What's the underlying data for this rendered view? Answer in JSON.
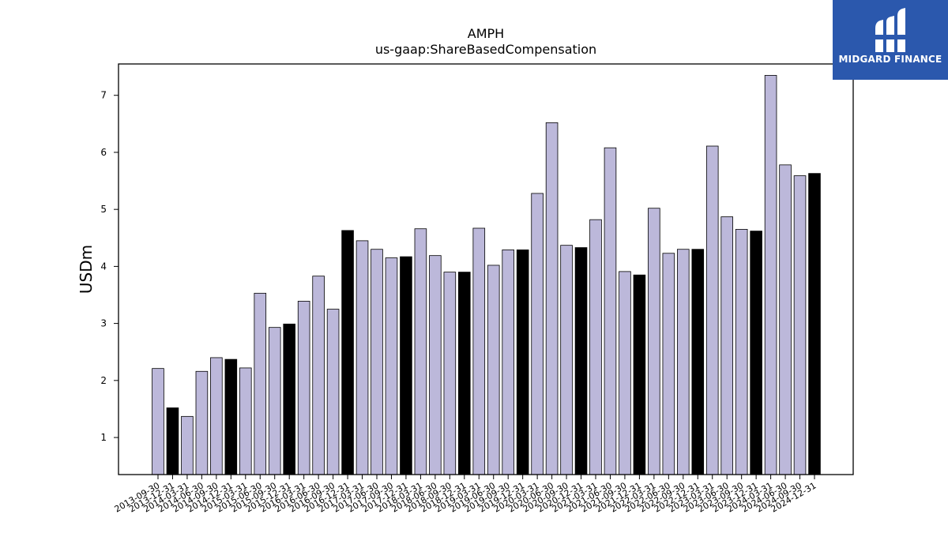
{
  "chart_data": {
    "type": "bar",
    "title": "AMPH",
    "subtitle": "us-gaap:ShareBasedCompensation",
    "xlabel": "",
    "ylabel": "USDm",
    "ylim": [
      0.35,
      7.55
    ],
    "yticks": [
      1,
      2,
      3,
      4,
      5,
      6,
      7
    ],
    "grid": false,
    "categories": [
      "2013-09-30",
      "2013-12-31",
      "2014-03-31",
      "2014-06-30",
      "2014-09-30",
      "2014-12-31",
      "2015-03-31",
      "2015-06-30",
      "2015-09-30",
      "2015-12-31",
      "2016-03-31",
      "2016-06-30",
      "2016-09-30",
      "2016-12-31",
      "2017-03-31",
      "2017-06-30",
      "2017-09-30",
      "2017-12-31",
      "2018-03-31",
      "2018-06-30",
      "2018-09-30",
      "2018-12-31",
      "2019-03-31",
      "2019-06-30",
      "2019-09-30",
      "2019-12-31",
      "2020-03-31",
      "2020-06-30",
      "2020-09-30",
      "2020-12-31",
      "2021-03-31",
      "2021-06-30",
      "2021-09-30",
      "2021-12-31",
      "2022-03-31",
      "2022-06-30",
      "2022-09-30",
      "2022-12-31",
      "2023-03-31",
      "2023-06-30",
      "2023-09-30",
      "2023-12-31",
      "2024-03-31",
      "2024-06-30",
      "2024-09-30",
      "2024-12-31"
    ],
    "values": [
      2.21,
      1.52,
      1.37,
      2.16,
      2.4,
      2.37,
      2.22,
      3.53,
      2.93,
      2.99,
      3.39,
      3.83,
      3.25,
      4.63,
      4.45,
      4.3,
      4.15,
      4.17,
      4.66,
      4.19,
      3.9,
      3.9,
      4.67,
      4.02,
      4.29,
      4.29,
      5.28,
      6.52,
      4.37,
      4.33,
      4.82,
      6.08,
      3.91,
      3.85,
      5.02,
      4.23,
      4.3,
      4.3,
      6.11,
      4.87,
      4.65,
      4.62,
      7.35,
      5.78,
      5.59,
      5.63
    ],
    "colors": {
      "quarter": "#bcb8da",
      "year_end": "#000000",
      "edge": "#000000"
    }
  },
  "brand": {
    "name": "MIDGARD FINANCE",
    "background": "#2b58ad"
  }
}
